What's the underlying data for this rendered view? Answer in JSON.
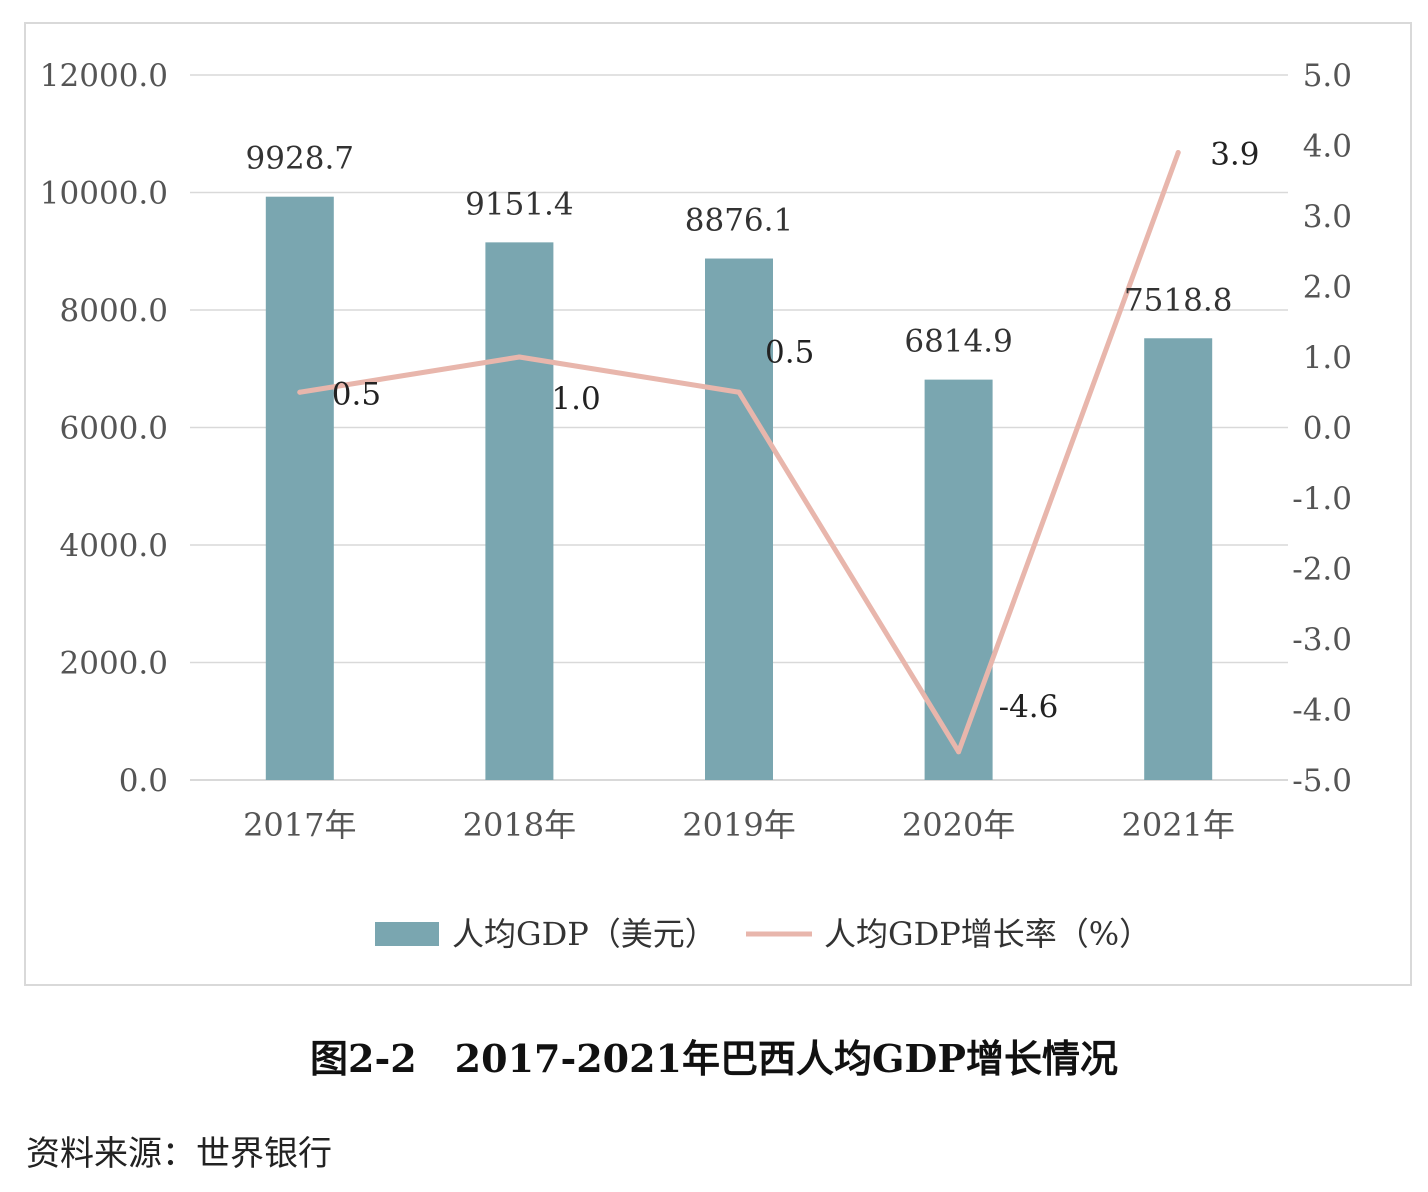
{
  "chart_data": {
    "type": "bar",
    "categories": [
      "2017年",
      "2018年",
      "2019年",
      "2020年",
      "2021年"
    ],
    "series": [
      {
        "name": "人均GDP（美元）",
        "type": "bar",
        "axis": "left",
        "values": [
          9928.7,
          9151.4,
          8876.1,
          6814.9,
          7518.8
        ],
        "labels": [
          "9928.7",
          "9151.4",
          "8876.1",
          "6814.9",
          "7518.8"
        ],
        "color": "#7aa6b0"
      },
      {
        "name": "人均GDP增长率（%）",
        "type": "line",
        "axis": "right",
        "values": [
          0.5,
          1.0,
          0.5,
          -4.6,
          3.9
        ],
        "labels": [
          "0.5",
          "1.0",
          "0.5",
          "-4.6",
          "3.9"
        ],
        "color": "#e8b6ac"
      }
    ],
    "y_left": {
      "ylim": [
        0,
        12000
      ],
      "ticks": [
        "0.0",
        "2000.0",
        "4000.0",
        "6000.0",
        "8000.0",
        "10000.0",
        "12000.0"
      ]
    },
    "y_right": {
      "ylim": [
        -5,
        5
      ],
      "ticks": [
        "-5.0",
        "-4.0",
        "-3.0",
        "-2.0",
        "-1.0",
        "0.0",
        "1.0",
        "2.0",
        "3.0",
        "4.0",
        "5.0"
      ]
    },
    "grid": true,
    "legend_position": "bottom"
  },
  "caption": "图2-2　2017-2021年巴西人均GDP增长情况",
  "source": "资料来源：世界银行",
  "colors": {
    "bar": "#7aa6b0",
    "line": "#e8b6ac",
    "grid": "#d9d9d9",
    "axis_text": "#555555"
  }
}
